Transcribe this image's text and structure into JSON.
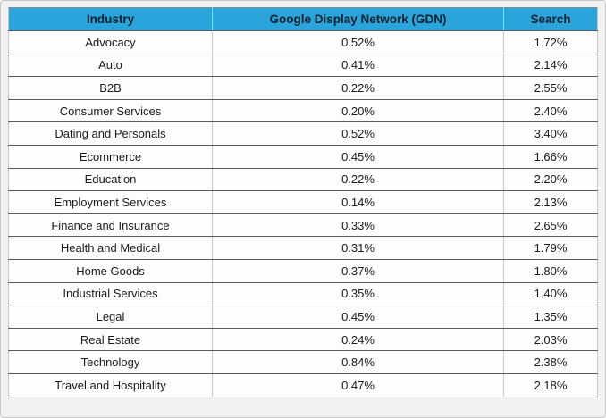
{
  "colors": {
    "header_bg": "#2aa5dc",
    "header_text": "#14212c",
    "row_bg": "#fdfdfd",
    "row_separator": "#5b5b5d",
    "column_separator": "#c9c9c9",
    "frame_bg": "#f2f1f2",
    "frame_border": "#c8c8c8"
  },
  "table": {
    "headers": [
      "Industry",
      "Google Display Network (GDN)",
      "Search"
    ],
    "rows": [
      {
        "industry": "Advocacy",
        "gdn": "0.52%",
        "search": "1.72%"
      },
      {
        "industry": "Auto",
        "gdn": "0.41%",
        "search": "2.14%"
      },
      {
        "industry": "B2B",
        "gdn": "0.22%",
        "search": "2.55%"
      },
      {
        "industry": "Consumer Services",
        "gdn": "0.20%",
        "search": "2.40%"
      },
      {
        "industry": "Dating and Personals",
        "gdn": "0.52%",
        "search": "3.40%"
      },
      {
        "industry": "Ecommerce",
        "gdn": "0.45%",
        "search": "1.66%"
      },
      {
        "industry": "Education",
        "gdn": "0.22%",
        "search": "2.20%"
      },
      {
        "industry": "Employment Services",
        "gdn": "0.14%",
        "search": "2.13%"
      },
      {
        "industry": "Finance and Insurance",
        "gdn": "0.33%",
        "search": "2.65%"
      },
      {
        "industry": "Health and Medical",
        "gdn": "0.31%",
        "search": "1.79%"
      },
      {
        "industry": "Home Goods",
        "gdn": "0.37%",
        "search": "1.80%"
      },
      {
        "industry": "Industrial Services",
        "gdn": "0.35%",
        "search": "1.40%"
      },
      {
        "industry": "Legal",
        "gdn": "0.45%",
        "search": "1.35%"
      },
      {
        "industry": "Real Estate",
        "gdn": "0.24%",
        "search": "2.03%"
      },
      {
        "industry": "Technology",
        "gdn": "0.84%",
        "search": "2.38%"
      },
      {
        "industry": "Travel and Hospitality",
        "gdn": "0.47%",
        "search": "2.18%"
      }
    ]
  },
  "chart_data": {
    "type": "table",
    "title": "",
    "columns": [
      "Industry",
      "Google Display Network (GDN)",
      "Search"
    ],
    "categories": [
      "Advocacy",
      "Auto",
      "B2B",
      "Consumer Services",
      "Dating and Personals",
      "Ecommerce",
      "Education",
      "Employment Services",
      "Finance and Insurance",
      "Health and Medical",
      "Home Goods",
      "Industrial Services",
      "Legal",
      "Real Estate",
      "Technology",
      "Travel and Hospitality"
    ],
    "series": [
      {
        "name": "Google Display Network (GDN)",
        "unit": "%",
        "values": [
          0.52,
          0.41,
          0.22,
          0.2,
          0.52,
          0.45,
          0.22,
          0.14,
          0.33,
          0.31,
          0.37,
          0.35,
          0.45,
          0.24,
          0.84,
          0.47
        ]
      },
      {
        "name": "Search",
        "unit": "%",
        "values": [
          1.72,
          2.14,
          2.55,
          2.4,
          3.4,
          1.66,
          2.2,
          2.13,
          2.65,
          1.79,
          1.8,
          1.4,
          1.35,
          2.03,
          2.38,
          2.18
        ]
      }
    ]
  }
}
